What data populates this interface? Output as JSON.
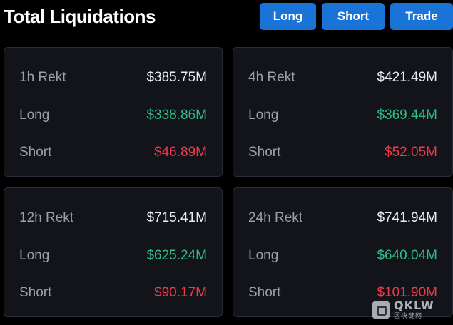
{
  "header": {
    "title": "Total Liquidations",
    "buttons": {
      "long": "Long",
      "short": "Short",
      "trade": "Trade"
    }
  },
  "cards": [
    {
      "period_label": "1h Rekt",
      "total": "$385.75M",
      "long_label": "Long",
      "long_value": "$338.86M",
      "short_label": "Short",
      "short_value": "$46.89M"
    },
    {
      "period_label": "4h Rekt",
      "total": "$421.49M",
      "long_label": "Long",
      "long_value": "$369.44M",
      "short_label": "Short",
      "short_value": "$52.05M"
    },
    {
      "period_label": "12h Rekt",
      "total": "$715.41M",
      "long_label": "Long",
      "long_value": "$625.24M",
      "short_label": "Short",
      "short_value": "$90.17M"
    },
    {
      "period_label": "24h Rekt",
      "total": "$741.94M",
      "long_label": "Long",
      "long_value": "$640.04M",
      "short_label": "Short",
      "short_value": "$101.90M"
    }
  ],
  "colors": {
    "background": "#000000",
    "card": "#12141a",
    "button": "#1a74d8",
    "long_green": "#2ebd85",
    "short_red": "#f0394a"
  },
  "watermark": {
    "brand": "QKLW",
    "sub": "区块链网"
  }
}
